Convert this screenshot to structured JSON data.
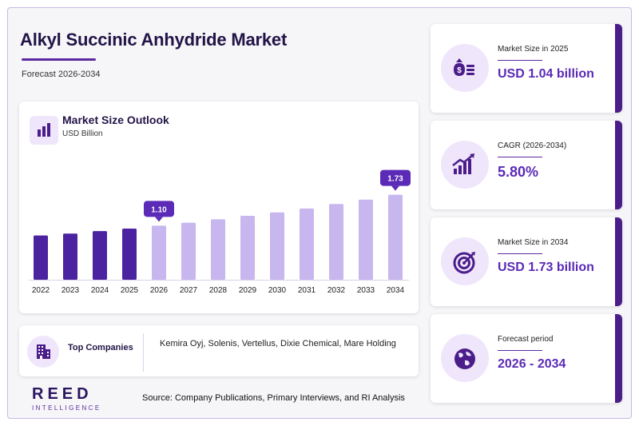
{
  "header": {
    "title": "Alkyl Succinic Anhydride Market",
    "subtitle": "Forecast 2026-2034"
  },
  "chart_card": {
    "title": "Market Size Outlook",
    "unit": "USD Billion"
  },
  "chart_data": {
    "type": "bar",
    "title": "Market Size Outlook",
    "ylabel": "USD Billion",
    "categories": [
      "2022",
      "2023",
      "2024",
      "2025",
      "2026",
      "2027",
      "2028",
      "2029",
      "2030",
      "2031",
      "2032",
      "2033",
      "2034"
    ],
    "values": [
      0.9,
      0.94,
      0.99,
      1.04,
      1.1,
      1.16,
      1.23,
      1.3,
      1.37,
      1.45,
      1.54,
      1.63,
      1.73
    ],
    "historical_years": [
      "2022",
      "2023",
      "2024",
      "2025"
    ],
    "colors": {
      "historical": "#4b23a0",
      "forecast": "#c8b7ef",
      "callout": "#5b2ab6"
    },
    "callouts": [
      {
        "category": "2026",
        "label": "1.10"
      },
      {
        "category": "2034",
        "label": "1.73"
      }
    ],
    "grid": false,
    "legend": "none"
  },
  "companies": {
    "label": "Top Companies",
    "list": "Kemira Oyj, Solenis, Vertellus, Dixie Chemical, Mare Holding"
  },
  "logo": {
    "name": "REED",
    "tagline": "INTELLIGENCE"
  },
  "source": "Source: Company Publications, Primary Interviews, and RI Analysis",
  "stats": [
    {
      "label": "Market Size in 2025",
      "value": "USD 1.04 billion",
      "icon": "money-bag-icon"
    },
    {
      "label": "CAGR (2026-2034)",
      "value": "5.80%",
      "icon": "growth-chart-icon"
    },
    {
      "label": "Market Size in 2034",
      "value": "USD 1.73 billion",
      "icon": "target-icon"
    },
    {
      "label": "Forecast period",
      "value": "2026 - 2034",
      "icon": "globe-icon"
    }
  ]
}
